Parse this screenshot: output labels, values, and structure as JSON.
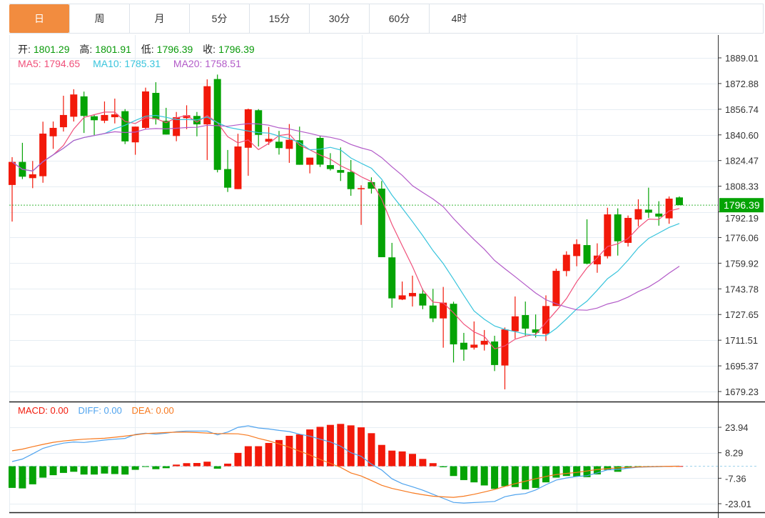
{
  "tabs": [
    {
      "label": "日",
      "active": true
    },
    {
      "label": "周",
      "active": false
    },
    {
      "label": "月",
      "active": false
    },
    {
      "label": "5分",
      "active": false
    },
    {
      "label": "15分",
      "active": false
    },
    {
      "label": "30分",
      "active": false
    },
    {
      "label": "60分",
      "active": false
    },
    {
      "label": "4时",
      "active": false
    }
  ],
  "ohlc_legend": {
    "open_label": "开:",
    "open": "1801.29",
    "high_label": "高:",
    "high": "1801.91",
    "low_label": "低:",
    "low": "1796.39",
    "close_label": "收:",
    "close": "1796.39"
  },
  "ma_legend": {
    "ma5": "MA5: 1794.65",
    "ma10": "MA10: 1785.31",
    "ma20": "MA20: 1758.51"
  },
  "macd_legend": {
    "macd": "MACD: 0.00",
    "diff": "DIFF: 0.00",
    "dea": "DEA: 0.00"
  },
  "current_price": "1796.39",
  "colors": {
    "up": "#f2190a",
    "down": "#05a305",
    "ma5": "#f0507a",
    "ma10": "#38c4dc",
    "ma20": "#b25ac8",
    "diff": "#4fa3ee",
    "dea": "#f7791f",
    "accent": "#f28c3f",
    "price_tag": "#05a305"
  },
  "chart_data": [
    {
      "type": "candlestick",
      "title": "",
      "price_axis_ticks": [
        "1889.01",
        "1872.88",
        "1856.74",
        "1840.60",
        "1824.47",
        "1808.33",
        "1792.19",
        "1776.06",
        "1759.92",
        "1743.78",
        "1727.65",
        "1711.51",
        "1695.37",
        "1679.23"
      ],
      "ylim": [
        1679.23,
        1889.01
      ],
      "candle_format": [
        "open",
        "high",
        "low",
        "close"
      ],
      "candles": [
        [
          1809.1,
          1826.6,
          1786.1,
          1823.6
        ],
        [
          1823.6,
          1835.6,
          1812.8,
          1814.3
        ],
        [
          1813.4,
          1824.2,
          1807.1,
          1815.8
        ],
        [
          1814.6,
          1848.9,
          1810.5,
          1841.4
        ],
        [
          1839.7,
          1849.0,
          1831.8,
          1845.0
        ],
        [
          1845.4,
          1865.2,
          1842.7,
          1853.1
        ],
        [
          1852.0,
          1869.3,
          1849.0,
          1866.0
        ],
        [
          1864.8,
          1867.8,
          1841.8,
          1852.5
        ],
        [
          1852.3,
          1853.5,
          1840.4,
          1849.8
        ],
        [
          1849.5,
          1861.6,
          1848.0,
          1853.1
        ],
        [
          1851.7,
          1863.4,
          1847.8,
          1853.5
        ],
        [
          1855.5,
          1856.8,
          1834.8,
          1836.5
        ],
        [
          1835.9,
          1845.8,
          1828.1,
          1845.8
        ],
        [
          1845.0,
          1870.3,
          1843.9,
          1867.9
        ],
        [
          1867.0,
          1873.7,
          1847.1,
          1850.5
        ],
        [
          1849.5,
          1857.6,
          1840.8,
          1840.8
        ],
        [
          1839.9,
          1855.0,
          1836.6,
          1851.7
        ],
        [
          1851.1,
          1859.2,
          1844.2,
          1852.9
        ],
        [
          1852.5,
          1855.0,
          1839.7,
          1847.2
        ],
        [
          1847.2,
          1875.5,
          1824.8,
          1871.2
        ],
        [
          1875.7,
          1878.5,
          1817.0,
          1818.6
        ],
        [
          1819.1,
          1831.1,
          1804.7,
          1807.4
        ],
        [
          1806.5,
          1841.3,
          1806.5,
          1833.3
        ],
        [
          1832.5,
          1857.1,
          1814.9,
          1856.7
        ],
        [
          1856.1,
          1856.8,
          1833.3,
          1840.6
        ],
        [
          1836.3,
          1845.6,
          1834.3,
          1838.1
        ],
        [
          1836.3,
          1843.1,
          1828.2,
          1832.3
        ],
        [
          1831.8,
          1847.4,
          1823.0,
          1837.5
        ],
        [
          1837.2,
          1845.8,
          1821.8,
          1821.8
        ],
        [
          1821.8,
          1826.3,
          1816.4,
          1826.3
        ],
        [
          1838.7,
          1840.1,
          1820.4,
          1821.9
        ],
        [
          1821.6,
          1829.1,
          1818.2,
          1819.1
        ],
        [
          1818.5,
          1832.7,
          1811.6,
          1816.8
        ],
        [
          1817.3,
          1824.8,
          1802.3,
          1806.5
        ],
        [
          1806.7,
          1808.9,
          1784.0,
          1807.1
        ],
        [
          1810.9,
          1813.9,
          1803.7,
          1806.8
        ],
        [
          1806.8,
          1811.6,
          1763.7,
          1763.7
        ],
        [
          1763.6,
          1772.7,
          1731.9,
          1737.8
        ],
        [
          1737.1,
          1748.4,
          1736.7,
          1739.7
        ],
        [
          1739.1,
          1752.1,
          1732.7,
          1741.2
        ],
        [
          1740.8,
          1743.8,
          1731.0,
          1733.3
        ],
        [
          1733.3,
          1743.8,
          1722.9,
          1725.2
        ],
        [
          1725.2,
          1745.0,
          1706.8,
          1735.1
        ],
        [
          1734.4,
          1735.7,
          1697.5,
          1708.9
        ],
        [
          1709.9,
          1716.1,
          1698.6,
          1705.6
        ],
        [
          1706.8,
          1723.3,
          1705.6,
          1708.7
        ],
        [
          1708.7,
          1717.9,
          1705.0,
          1711.1
        ],
        [
          1710.7,
          1714.3,
          1692.1,
          1695.9
        ],
        [
          1695.6,
          1719.5,
          1680.6,
          1718.3
        ],
        [
          1717.1,
          1739.0,
          1712.5,
          1726.5
        ],
        [
          1727.3,
          1735.8,
          1714.3,
          1718.8
        ],
        [
          1718.3,
          1727.7,
          1713.2,
          1716.2
        ],
        [
          1715.5,
          1739.7,
          1711.0,
          1733.0
        ],
        [
          1733.0,
          1756.5,
          1733.0,
          1755.1
        ],
        [
          1755.0,
          1767.4,
          1751.7,
          1765.2
        ],
        [
          1764.4,
          1774.9,
          1758.0,
          1771.9
        ],
        [
          1771.3,
          1787.5,
          1759.2,
          1759.6
        ],
        [
          1759.2,
          1772.4,
          1753.9,
          1764.7
        ],
        [
          1764.3,
          1794.8,
          1762.9,
          1790.6
        ],
        [
          1790.6,
          1794.4,
          1764.7,
          1773.7
        ],
        [
          1772.7,
          1789.9,
          1770.4,
          1788.4
        ],
        [
          1787.4,
          1800.1,
          1783.1,
          1793.9
        ],
        [
          1793.6,
          1807.4,
          1788.4,
          1791.7
        ],
        [
          1791.1,
          1798.9,
          1783.5,
          1789.2
        ],
        [
          1788.1,
          1801.9,
          1784.7,
          1800.5
        ],
        [
          1801.29,
          1801.91,
          1796.39,
          1796.39
        ]
      ],
      "moving_averages": [
        {
          "name": "MA5",
          "period": 5
        },
        {
          "name": "MA10",
          "period": 10
        },
        {
          "name": "MA20",
          "period": 20
        }
      ]
    },
    {
      "type": "bar+line",
      "title": "MACD",
      "axis_ticks": [
        "23.94",
        "8.29",
        "-7.36",
        "-23.01"
      ],
      "ylim": [
        -23.01,
        23.94
      ],
      "macd": [
        -13.3,
        -13.6,
        -11.1,
        -7.0,
        -5.5,
        -4.1,
        -3.4,
        -5.1,
        -5.1,
        -4.5,
        -4.8,
        -5.1,
        -2.2,
        -0.1,
        -1.8,
        -1.2,
        1.0,
        1.9,
        2.0,
        2.8,
        -1.5,
        1.6,
        8.2,
        12.3,
        12.3,
        14.3,
        16.1,
        18.7,
        19.6,
        22.6,
        24.2,
        25.4,
        26.0,
        25.1,
        23.9,
        20.3,
        13.1,
        9.6,
        9.1,
        7.6,
        4.5,
        1.9,
        -0.6,
        -6.0,
        -8.5,
        -9.9,
        -11.8,
        -13.9,
        -12.3,
        -12.8,
        -14.2,
        -13.3,
        -9.9,
        -7.0,
        -6.0,
        -6.3,
        -6.7,
        -5.0,
        -2.3,
        -3.4,
        -1.3,
        -0.7,
        -0.4,
        -0.3,
        0.1,
        0.1
      ],
      "diff": [
        2.9,
        4.4,
        7.6,
        11.0,
        12.8,
        14.2,
        14.9,
        14.6,
        15.3,
        16.1,
        16.6,
        17.1,
        19.6,
        20.3,
        19.7,
        20.3,
        21.2,
        21.6,
        21.6,
        21.6,
        19.3,
        21.0,
        23.9,
        24.8,
        23.5,
        22.9,
        22.0,
        21.3,
        19.7,
        18.5,
        16.6,
        14.9,
        12.3,
        8.3,
        6.1,
        1.3,
        -2.3,
        -7.7,
        -10.7,
        -12.6,
        -14.7,
        -17.2,
        -19.7,
        -22.2,
        -22.6,
        -22.3,
        -22.0,
        -21.6,
        -18.7,
        -17.5,
        -16.8,
        -14.6,
        -11.4,
        -8.5,
        -7.2,
        -6.3,
        -5.8,
        -4.1,
        -2.2,
        -2.0,
        -1.2,
        -0.6,
        -0.4,
        -0.3,
        0.0,
        0.1
      ],
      "dea": [
        9.5,
        10.5,
        12.0,
        13.4,
        14.7,
        15.5,
        16.1,
        16.6,
        16.9,
        17.2,
        17.8,
        18.5,
        19.3,
        20.1,
        20.4,
        20.7,
        20.9,
        20.9,
        20.7,
        20.4,
        20.1,
        20.0,
        19.9,
        19.0,
        17.1,
        15.6,
        13.7,
        11.7,
        9.3,
        6.9,
        4.2,
        1.8,
        -0.7,
        -4.1,
        -6.0,
        -8.8,
        -11.7,
        -13.6,
        -15.0,
        -16.4,
        -17.5,
        -18.4,
        -18.8,
        -19.1,
        -18.4,
        -17.2,
        -15.8,
        -14.3,
        -12.4,
        -10.7,
        -9.2,
        -7.7,
        -6.3,
        -5.1,
        -4.4,
        -3.8,
        -2.9,
        -2.0,
        -1.5,
        -1.0,
        -0.7,
        -0.4,
        -0.3,
        -0.1,
        0.0,
        0.0
      ]
    }
  ]
}
